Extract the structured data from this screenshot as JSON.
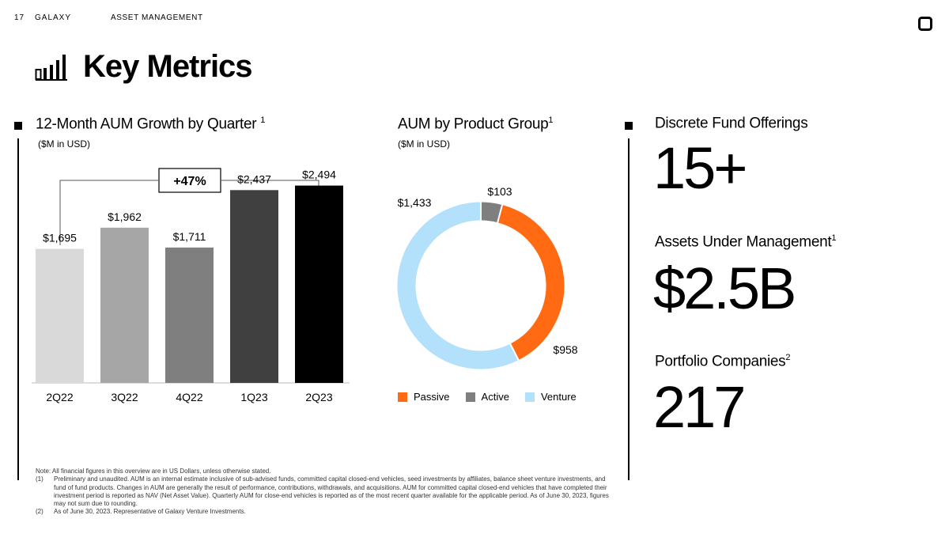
{
  "header": {
    "page_number": "17",
    "brand": "GALAXY",
    "section": "ASSET MANAGEMENT"
  },
  "page_title": "Key Metrics",
  "bar_section": {
    "title": "12-Month AUM Growth by Quarter",
    "title_sup": "1",
    "subtitle": "($M in USD)",
    "growth_label": "+47%"
  },
  "donut_section": {
    "title": "AUM by Product Group",
    "title_sup": "1",
    "subtitle": "($M in USD)"
  },
  "metrics": [
    {
      "label": "Discrete Fund Offerings",
      "sup": "",
      "value": "15+"
    },
    {
      "label": "Assets Under Management",
      "sup": "1",
      "value": "$2.5B"
    },
    {
      "label": "Portfolio Companies",
      "sup": "2",
      "value": "217"
    }
  ],
  "chart_data": [
    {
      "type": "bar",
      "title": "12-Month AUM Growth by Quarter",
      "ylabel": "($M in USD)",
      "categories": [
        "2Q22",
        "3Q22",
        "4Q22",
        "1Q23",
        "2Q23"
      ],
      "values": [
        1695,
        1962,
        1711,
        2437,
        2494
      ],
      "value_labels": [
        "$1,695",
        "$1,962",
        "$1,711",
        "$2,437",
        "$2,494"
      ],
      "colors": [
        "#d9d9d9",
        "#a6a6a6",
        "#7f7f7f",
        "#404040",
        "#000000"
      ],
      "ylim": [
        0,
        2700
      ],
      "annotation": "+47%"
    },
    {
      "type": "pie",
      "title": "AUM by Product Group",
      "ylabel": "($M in USD)",
      "categories": [
        "Passive",
        "Active",
        "Venture"
      ],
      "values": [
        958,
        103,
        1433
      ],
      "value_labels": [
        "$958",
        "$103",
        "$1,433"
      ],
      "colors": [
        "#ff6a13",
        "#7f7f7f",
        "#b3e0fb"
      ]
    }
  ],
  "notes": {
    "intro": "Note: All financial figures in this overview are in US Dollars, unless otherwise stated.",
    "items": [
      {
        "num": "(1)",
        "text": "Preliminary and unaudited. AUM is an internal estimate inclusive of sub-advised funds, committed capital closed-end vehicles, seed investments by affiliates, balance sheet venture investments, and fund of fund products. Changes in AUM are generally the result of performance, contributions, withdrawals, and acquisitions. AUM for committed capital closed-end vehicles that have completed their investment period is reported as NAV (Net Asset Value). Quarterly AUM for close-end vehicles is reported as of the most recent quarter available for the applicable period. As of June 30, 2023, figures may not sum due to rounding."
      },
      {
        "num": "(2)",
        "text": "As of June 30, 2023. Representative of Galaxy Venture Investments."
      }
    ]
  }
}
